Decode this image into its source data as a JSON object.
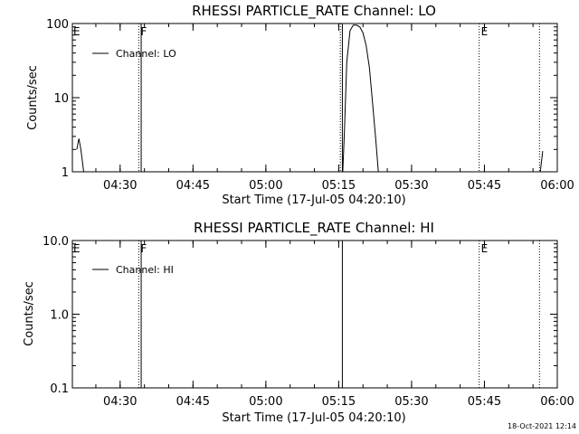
{
  "footer": {
    "timestamp": "18-Oct-2021 12:14"
  },
  "chart_data": [
    {
      "type": "line",
      "title": "RHESSI PARTICLE_RATE Channel: LO",
      "xlabel": "Start Time (17-Jul-05 04:20:10)",
      "ylabel": "Counts/sec",
      "y_scale": "log",
      "ylim": [
        1,
        100
      ],
      "xlim": [
        "04:20:10",
        "06:00:00"
      ],
      "x_ticks": [
        "04:30",
        "04:45",
        "05:00",
        "05:15",
        "05:30",
        "05:45",
        "06:00"
      ],
      "y_ticks": [
        "1",
        "10",
        "100"
      ],
      "legend": {
        "placement": "top-left",
        "entries": [
          "Channel: LO"
        ]
      },
      "grid": false,
      "series": [
        {
          "name": "Channel: LO",
          "segments": [
            [
              [
                "04:21:05",
                2.0
              ],
              [
                "04:21:30",
                2.8
              ],
              [
                "04:21:55",
                2.0
              ],
              [
                "04:22:30",
                1.0
              ]
            ],
            [
              [
                "05:15:50",
                1.0
              ],
              [
                "05:16:10",
                3.5
              ],
              [
                "05:16:40",
                30
              ],
              [
                "05:17:20",
                80
              ],
              [
                "05:18:00",
                95
              ],
              [
                "05:18:40",
                95
              ],
              [
                "05:19:20",
                90
              ],
              [
                "05:20:00",
                75
              ],
              [
                "05:20:40",
                50
              ],
              [
                "05:21:20",
                25
              ],
              [
                "05:22:00",
                8
              ],
              [
                "05:22:40",
                2.5
              ],
              [
                "05:23:10",
                1.0
              ]
            ],
            [
              [
                "05:56:30",
                1.0
              ],
              [
                "05:57:00",
                1.9
              ]
            ]
          ]
        }
      ],
      "markers": [
        {
          "time": "04:33:50",
          "label": "F",
          "style": "dotted"
        },
        {
          "time": "04:34:20",
          "label": "",
          "style": "solid"
        },
        {
          "time": "05:15:20",
          "label": "",
          "style": "dotted"
        },
        {
          "time": "05:15:45",
          "label": "",
          "style": "solid"
        },
        {
          "time": "05:43:55",
          "label": "E",
          "style": "dotted"
        },
        {
          "time": "05:56:20",
          "label": "",
          "style": "dotted"
        }
      ],
      "edge_label": "E"
    },
    {
      "type": "line",
      "title": "RHESSI PARTICLE_RATE Channel: HI",
      "xlabel": "Start Time (17-Jul-05 04:20:10)",
      "ylabel": "Counts/sec",
      "y_scale": "log",
      "ylim": [
        0.1,
        10
      ],
      "xlim": [
        "04:20:10",
        "06:00:00"
      ],
      "x_ticks": [
        "04:30",
        "04:45",
        "05:00",
        "05:15",
        "05:30",
        "05:45",
        "06:00"
      ],
      "y_ticks": [
        "0.1",
        "1.0",
        "10.0"
      ],
      "legend": {
        "placement": "top-left",
        "entries": [
          "Channel: HI"
        ]
      },
      "grid": false,
      "series": [
        {
          "name": "Channel: HI",
          "segments": []
        }
      ],
      "markers": [
        {
          "time": "04:33:50",
          "label": "F",
          "style": "dotted"
        },
        {
          "time": "04:34:20",
          "label": "",
          "style": "solid"
        },
        {
          "time": "05:15:45",
          "label": "",
          "style": "solid"
        },
        {
          "time": "05:43:55",
          "label": "E",
          "style": "dotted"
        },
        {
          "time": "05:56:20",
          "label": "",
          "style": "dotted"
        }
      ],
      "edge_label": "E"
    }
  ]
}
